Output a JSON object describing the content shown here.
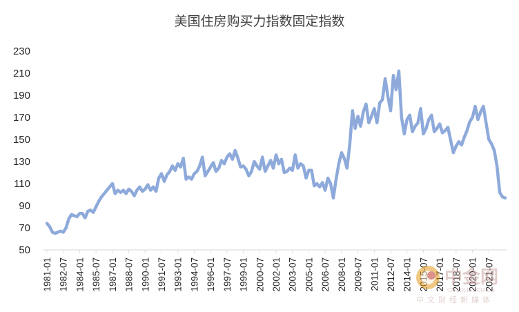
{
  "chart_data": {
    "type": "line",
    "title": "美国住房购买力指数固定指数",
    "xlabel": "",
    "ylabel": "",
    "ylim": [
      50,
      230
    ],
    "yticks": [
      50,
      70,
      90,
      110,
      130,
      150,
      170,
      190,
      210,
      230
    ],
    "grid": false,
    "legend": "none",
    "line_color": "#8eaadb",
    "x_tick_labels": [
      "1981-01",
      "1982-07",
      "1984-01",
      "1985-07",
      "1987-01",
      "1988-07",
      "1990-01",
      "1991-07",
      "1993-01",
      "1994-07",
      "1996-01",
      "1997-07",
      "1999-01",
      "2000-07",
      "2002-01",
      "2003-07",
      "2005-01",
      "2006-07",
      "2008-01",
      "2009-07",
      "2011-01",
      "2012-07",
      "2014-01",
      "2015-07",
      "2017-01",
      "2018-07",
      "2020-01",
      "2021-07"
    ],
    "series": [
      {
        "x": [
          "1981-01",
          "1981-04",
          "1981-07",
          "1981-10",
          "1982-01",
          "1982-04",
          "1982-07",
          "1982-10",
          "1983-01",
          "1983-04",
          "1983-07",
          "1983-10",
          "1984-01",
          "1984-04",
          "1984-07",
          "1984-10",
          "1985-01",
          "1985-04",
          "1985-07",
          "1985-10",
          "1986-01",
          "1986-04",
          "1986-07",
          "1986-10",
          "1987-01",
          "1987-04",
          "1987-07",
          "1987-10",
          "1988-01",
          "1988-04",
          "1988-07",
          "1988-10",
          "1989-01",
          "1989-04",
          "1989-07",
          "1989-10",
          "1990-01",
          "1990-04",
          "1990-07",
          "1990-10",
          "1991-01",
          "1991-04",
          "1991-07",
          "1991-10",
          "1992-01",
          "1992-04",
          "1992-07",
          "1992-10",
          "1993-01",
          "1993-04",
          "1993-07",
          "1993-10",
          "1994-01",
          "1994-04",
          "1994-07",
          "1994-10",
          "1995-01",
          "1995-04",
          "1995-07",
          "1995-10",
          "1996-01",
          "1996-04",
          "1996-07",
          "1996-10",
          "1997-01",
          "1997-04",
          "1997-07",
          "1997-10",
          "1998-01",
          "1998-04",
          "1998-07",
          "1998-10",
          "1999-01",
          "1999-04",
          "1999-07",
          "1999-10",
          "2000-01",
          "2000-04",
          "2000-07",
          "2000-10",
          "2001-01",
          "2001-04",
          "2001-07",
          "2001-10",
          "2002-01",
          "2002-04",
          "2002-07",
          "2002-10",
          "2003-01",
          "2003-04",
          "2003-07",
          "2003-10",
          "2004-01",
          "2004-04",
          "2004-07",
          "2004-10",
          "2005-01",
          "2005-04",
          "2005-07",
          "2005-10",
          "2006-01",
          "2006-04",
          "2006-07",
          "2006-10",
          "2007-01",
          "2007-04",
          "2007-07",
          "2007-10",
          "2008-01",
          "2008-04",
          "2008-07",
          "2008-10",
          "2009-01",
          "2009-04",
          "2009-07",
          "2009-10",
          "2010-01",
          "2010-04",
          "2010-07",
          "2010-10",
          "2011-01",
          "2011-04",
          "2011-07",
          "2011-10",
          "2012-01",
          "2012-04",
          "2012-07",
          "2012-10",
          "2013-01",
          "2013-04",
          "2013-07",
          "2013-10",
          "2014-01",
          "2014-04",
          "2014-07",
          "2014-10",
          "2015-01",
          "2015-04",
          "2015-07",
          "2015-10",
          "2016-01",
          "2016-04",
          "2016-07",
          "2016-10",
          "2017-01",
          "2017-04",
          "2017-07",
          "2017-10",
          "2018-01",
          "2018-04",
          "2018-07",
          "2018-10",
          "2019-01",
          "2019-04",
          "2019-07",
          "2019-10",
          "2020-01",
          "2020-04",
          "2020-07",
          "2020-10",
          "2021-01",
          "2021-04",
          "2021-07",
          "2021-10",
          "2022-01",
          "2022-04",
          "2022-07",
          "2022-10",
          "2023-01"
        ],
        "values": [
          74,
          71,
          66,
          65,
          66,
          67,
          66,
          70,
          78,
          82,
          81,
          80,
          83,
          83,
          79,
          85,
          86,
          84,
          89,
          94,
          98,
          101,
          104,
          107,
          110,
          101,
          104,
          102,
          104,
          101,
          105,
          103,
          99,
          104,
          107,
          103,
          105,
          109,
          104,
          107,
          103,
          115,
          119,
          112,
          118,
          121,
          126,
          122,
          128,
          125,
          133,
          114,
          116,
          114,
          119,
          121,
          126,
          134,
          117,
          121,
          125,
          129,
          121,
          124,
          131,
          128,
          134,
          137,
          132,
          140,
          133,
          125,
          126,
          123,
          117,
          121,
          130,
          126,
          123,
          134,
          121,
          126,
          131,
          124,
          136,
          128,
          132,
          120,
          121,
          124,
          122,
          136,
          124,
          128,
          126,
          115,
          122,
          122,
          108,
          110,
          107,
          111,
          104,
          115,
          110,
          97,
          114,
          128,
          138,
          133,
          124,
          145,
          176,
          160,
          171,
          162,
          175,
          182,
          165,
          171,
          178,
          165,
          183,
          186,
          205,
          189,
          176,
          208,
          195,
          212,
          170,
          155,
          168,
          172,
          157,
          162,
          165,
          178,
          155,
          160,
          168,
          172,
          157,
          160,
          164,
          156,
          158,
          161,
          149,
          138,
          144,
          148,
          145,
          152,
          158,
          166,
          170,
          180,
          168,
          175,
          180,
          165,
          150,
          146,
          140,
          126,
          102,
          98,
          97
        ]
      }
    ]
  },
  "watermark": {
    "brand": "中金网",
    "url": "CNGOLD.COM.CN",
    "tagline": "中文财经新媒体"
  }
}
